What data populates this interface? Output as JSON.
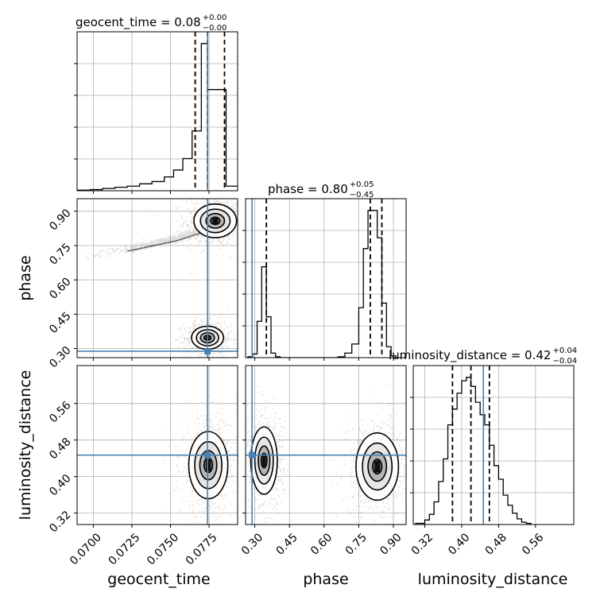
{
  "chart_data": {
    "type": "corner",
    "parameters": [
      {
        "name": "geocent_time",
        "label": "geocent_time",
        "range": [
          0.06895,
          0.07935
        ],
        "ticks": [
          "0.0700",
          "0.0725",
          "0.0750",
          "0.0775"
        ],
        "tick_values": [
          0.07,
          0.0725,
          0.075,
          0.0775
        ],
        "truth": 0.0774,
        "median": 0.0774,
        "q_lo": 0.0766,
        "q_hi": 0.0785
      },
      {
        "name": "phase",
        "label": "phase",
        "range": [
          0.26,
          0.955
        ],
        "ticks": [
          "0.30",
          "0.45",
          "0.60",
          "0.75",
          "0.90"
        ],
        "tick_values": [
          0.3,
          0.45,
          0.6,
          0.75,
          0.9
        ],
        "truth": 0.288,
        "median": 0.8,
        "q_lo": 0.35,
        "q_hi": 0.85
      },
      {
        "name": "luminosity_distance",
        "label": "luminosity_distance",
        "range": [
          0.295,
          0.643
        ],
        "ticks": [
          "0.32",
          "0.40",
          "0.48",
          "0.56"
        ],
        "tick_values": [
          0.32,
          0.4,
          0.48,
          0.56
        ],
        "truth": 0.447,
        "median": 0.42,
        "q_lo": 0.38,
        "q_hi": 0.46
      }
    ],
    "titles": [
      {
        "param": "geocent_time",
        "main": "geocent_time = 0.08",
        "plus": "+0.00",
        "minus": "−0.00"
      },
      {
        "param": "phase",
        "main": "phase = 0.80",
        "plus": "+0.05",
        "minus": "−0.45"
      },
      {
        "param": "luminosity_distance",
        "main": "luminosity_distance = 0.42",
        "plus": "+0.04",
        "minus": "−0.04"
      }
    ],
    "histograms": {
      "geocent_time": {
        "bin_edges": [
          0.069,
          0.0698,
          0.0706,
          0.0714,
          0.0722,
          0.073,
          0.0738,
          0.0746,
          0.0752,
          0.0758,
          0.0764,
          0.077,
          0.0774,
          0.0778,
          0.0786,
          0.0794
        ],
        "counts": [
          0.5,
          1,
          2,
          3,
          4,
          6,
          8,
          12,
          18,
          28,
          52,
          128,
          88,
          88,
          4
        ]
      },
      "phase": {
        "bin_edges": [
          0.27,
          0.29,
          0.31,
          0.33,
          0.35,
          0.37,
          0.39,
          0.41,
          0.66,
          0.69,
          0.72,
          0.75,
          0.77,
          0.79,
          0.81,
          0.83,
          0.85,
          0.87,
          0.89,
          0.91
        ],
        "counts": [
          1,
          4,
          40,
          100,
          45,
          5,
          1,
          0,
          1,
          5,
          15,
          55,
          120,
          162,
          162,
          132,
          60,
          12,
          2
        ]
      },
      "luminosity_distance": {
        "bin_edges": [
          0.3,
          0.32,
          0.33,
          0.34,
          0.35,
          0.36,
          0.37,
          0.38,
          0.39,
          0.4,
          0.41,
          0.42,
          0.43,
          0.44,
          0.45,
          0.46,
          0.47,
          0.48,
          0.49,
          0.5,
          0.51,
          0.52,
          0.53,
          0.54,
          0.55
        ],
        "counts": [
          1,
          4,
          9,
          20,
          38,
          58,
          88,
          102,
          116,
          127,
          130,
          122,
          108,
          97,
          88,
          70,
          52,
          40,
          26,
          17,
          10,
          5,
          2,
          1
        ]
      }
    },
    "joint": {
      "phase_vs_geocent_time": {
        "blobs": [
          {
            "cx": 0.0779,
            "cy": 0.858,
            "sx": 0.0006,
            "sy": 0.032
          },
          {
            "cx": 0.0774,
            "cy": 0.347,
            "sx": 0.00045,
            "sy": 0.022
          }
        ],
        "tail": [
          [
            0.0692,
            0.7
          ],
          [
            0.0722,
            0.735
          ],
          [
            0.074,
            0.763
          ],
          [
            0.0755,
            0.785
          ],
          [
            0.077,
            0.818
          ]
        ]
      },
      "luminosity_distance_vs_geocent_time": {
        "blobs": [
          {
            "cx": 0.07745,
            "cy": 0.425,
            "sx": 0.00055,
            "sy": 0.032
          }
        ]
      },
      "luminosity_distance_vs_phase": {
        "blobs": [
          {
            "cx": 0.34,
            "cy": 0.435,
            "sx": 0.025,
            "sy": 0.032
          },
          {
            "cx": 0.83,
            "cy": 0.422,
            "sx": 0.04,
            "sy": 0.032
          }
        ]
      }
    },
    "colors": {
      "truth": "#4682b4",
      "line": "#000000",
      "grid": "#b0b0b0",
      "scatter": "#555555"
    },
    "grid": true
  }
}
